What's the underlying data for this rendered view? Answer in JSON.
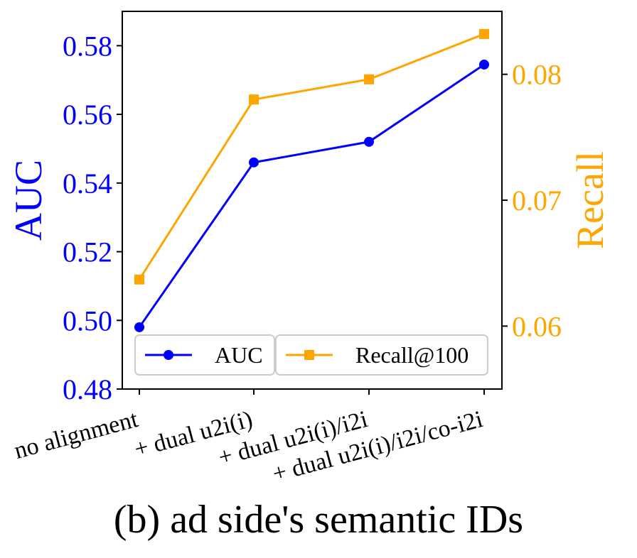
{
  "chart_data": {
    "type": "line",
    "categories": [
      "no alignment",
      "+ dual u2i(i)",
      "+ dual u2i(i)/i2i",
      "+ dual u2i(i)/i2i/co-i2i"
    ],
    "series": [
      {
        "name": "AUC",
        "axis": "left",
        "color": "#0000ff",
        "marker": "circle",
        "values": [
          0.498,
          0.546,
          0.552,
          0.5745
        ]
      },
      {
        "name": "Recall@100",
        "axis": "right",
        "color": "#ffa500",
        "marker": "square",
        "values": [
          0.0637,
          0.078,
          0.0796,
          0.0832
        ]
      }
    ],
    "ylabel": "AUC",
    "y2label": "Recall",
    "ylim": [
      0.48,
      0.59
    ],
    "y2lim": [
      0.055,
      0.085
    ],
    "yticks": [
      "0.48",
      "0.50",
      "0.52",
      "0.54",
      "0.56",
      "0.58"
    ],
    "y2ticks": [
      "0.06",
      "0.07",
      "0.08"
    ],
    "legend_position": "lower center",
    "grid": false,
    "left_axis_color": "#0000ff",
    "right_axis_color": "#ffa500"
  },
  "caption": "(b) ad side's semantic IDs"
}
